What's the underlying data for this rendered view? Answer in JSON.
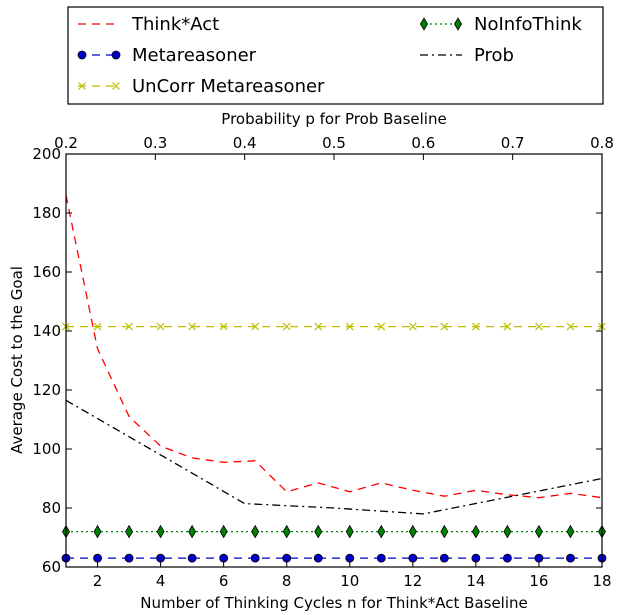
{
  "chart_data": {
    "type": "line",
    "title": "",
    "xlabel": "Number of Thinking Cycles n for Think*Act Baseline",
    "ylabel": "Average Cost to the Goal",
    "x2label": "Probability p for Prob Baseline",
    "xlim": [
      1,
      18
    ],
    "ylim": [
      60,
      200
    ],
    "x2lim": [
      0.2,
      0.8
    ],
    "x_ticks": [
      "2",
      "4",
      "6",
      "8",
      "10",
      "12",
      "14",
      "16",
      "18"
    ],
    "y_ticks": [
      "60",
      "80",
      "100",
      "120",
      "140",
      "160",
      "180",
      "200"
    ],
    "x2_ticks": [
      "0.2",
      "0.3",
      "0.4",
      "0.5",
      "0.6",
      "0.7",
      "0.8"
    ],
    "grid": false,
    "legend_position": "above plot",
    "series": [
      {
        "name": "Think*Act",
        "color": "#ff0000",
        "style": "dashed",
        "marker": "none",
        "x": [
          1,
          2,
          3,
          4,
          5,
          6,
          7,
          8,
          9,
          10,
          11,
          12,
          13,
          14,
          15,
          16,
          17,
          18
        ],
        "values": [
          186,
          134,
          111,
          101,
          97,
          95.5,
          96,
          85.5,
          88.5,
          85.5,
          88.5,
          86,
          84,
          86,
          84.5,
          83.5,
          85,
          83.5
        ]
      },
      {
        "name": "Metareasoner",
        "color": "#0000cc",
        "style": "dashed",
        "marker": "circle",
        "x": [
          1,
          2,
          3,
          4,
          5,
          6,
          7,
          8,
          9,
          10,
          11,
          12,
          13,
          14,
          15,
          16,
          17,
          18
        ],
        "values": [
          63,
          63,
          63,
          63,
          63,
          63,
          63,
          63,
          63,
          63,
          63,
          63,
          63,
          63,
          63,
          63,
          63,
          63
        ]
      },
      {
        "name": "UnCorr Metareasoner",
        "color": "#bfbf00",
        "style": "dashed",
        "marker": "x",
        "x": [
          1,
          2,
          3,
          4,
          5,
          6,
          7,
          8,
          9,
          10,
          11,
          12,
          13,
          14,
          15,
          16,
          17,
          18
        ],
        "values": [
          141.5,
          141.5,
          141.5,
          141.5,
          141.5,
          141.5,
          141.5,
          141.5,
          141.5,
          141.5,
          141.5,
          141.5,
          141.5,
          141.5,
          141.5,
          141.5,
          141.5,
          141.5
        ]
      },
      {
        "name": "NoInfoThink",
        "color": "#008000",
        "style": "dotted",
        "marker": "diamond",
        "x": [
          1,
          2,
          3,
          4,
          5,
          6,
          7,
          8,
          9,
          10,
          11,
          12,
          13,
          14,
          15,
          16,
          17,
          18
        ],
        "values": [
          72,
          72,
          72,
          72,
          72,
          72,
          72,
          72,
          72,
          72,
          72,
          72,
          72,
          72,
          72,
          72,
          72,
          72
        ]
      },
      {
        "name": "Prob",
        "color": "#000000",
        "style": "dashdot",
        "marker": "none",
        "axis": "x2",
        "x": [
          0.2,
          0.3,
          0.4,
          0.5,
          0.6,
          0.7,
          0.8
        ],
        "values": [
          116.5,
          99,
          81.5,
          80,
          78,
          84,
          90
        ]
      }
    ]
  }
}
